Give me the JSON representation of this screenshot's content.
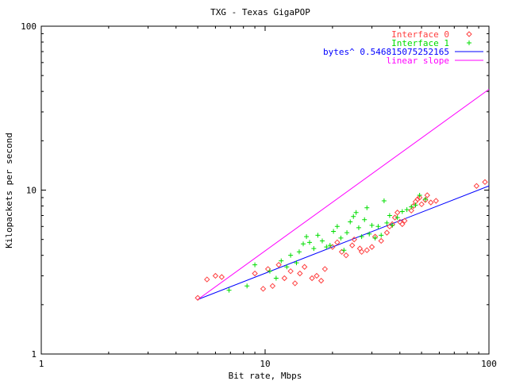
{
  "chart_data": {
    "type": "scatter",
    "title": "TXG - Texas GigaPOP",
    "xlabel": "Bit rate, Mbps",
    "ylabel": "Kilopackets per second",
    "xscale": "log",
    "yscale": "log",
    "xlim": [
      1,
      100
    ],
    "ylim": [
      1,
      100
    ],
    "xticks": [
      {
        "value": 1,
        "label": "1"
      },
      {
        "value": 10,
        "label": "10"
      },
      {
        "value": 100,
        "label": "100"
      }
    ],
    "yticks": [
      {
        "value": 1,
        "label": "1"
      },
      {
        "value": 10,
        "label": "10"
      },
      {
        "value": 100,
        "label": "100"
      }
    ],
    "grid": false,
    "legend_position": "top-right",
    "series": [
      {
        "name": "Interface 0",
        "kind": "points",
        "marker": "diamond",
        "color": "#ff4040",
        "points": [
          [
            5.5,
            2.85
          ],
          [
            6.0,
            3.0
          ],
          [
            6.4,
            2.95
          ],
          [
            5.0,
            2.2
          ],
          [
            9.0,
            3.1
          ],
          [
            9.8,
            2.5
          ],
          [
            10.3,
            3.3
          ],
          [
            10.8,
            2.6
          ],
          [
            11.5,
            3.5
          ],
          [
            12.2,
            2.9
          ],
          [
            13.0,
            3.2
          ],
          [
            13.6,
            2.7
          ],
          [
            14.3,
            3.1
          ],
          [
            15.0,
            3.4
          ],
          [
            16.2,
            2.9
          ],
          [
            17.0,
            3.0
          ],
          [
            17.8,
            2.8
          ],
          [
            18.5,
            3.3
          ],
          [
            20.0,
            4.5
          ],
          [
            21.0,
            4.8
          ],
          [
            22.0,
            4.2
          ],
          [
            23.0,
            4.0
          ],
          [
            24.5,
            4.6
          ],
          [
            25.0,
            5.0
          ],
          [
            26.5,
            4.4
          ],
          [
            27.0,
            4.2
          ],
          [
            28.5,
            4.3
          ],
          [
            30.0,
            4.5
          ],
          [
            31.0,
            5.2
          ],
          [
            33.0,
            4.9
          ],
          [
            35.0,
            5.5
          ],
          [
            36.0,
            6.0
          ],
          [
            37.0,
            6.2
          ],
          [
            38.0,
            6.8
          ],
          [
            39.0,
            7.3
          ],
          [
            40.0,
            6.4
          ],
          [
            41.0,
            6.2
          ],
          [
            42.0,
            6.5
          ],
          [
            45.0,
            7.5
          ],
          [
            46.0,
            8.0
          ],
          [
            47.0,
            8.5
          ],
          [
            48.0,
            8.8
          ],
          [
            49.0,
            9.0
          ],
          [
            50.0,
            8.2
          ],
          [
            52.0,
            8.7
          ],
          [
            53.0,
            9.3
          ],
          [
            55.0,
            8.4
          ],
          [
            58.0,
            8.6
          ],
          [
            88.0,
            10.6
          ],
          [
            96.0,
            11.2
          ]
        ]
      },
      {
        "name": "Interface 1",
        "kind": "points",
        "marker": "plus",
        "color": "#00dd00",
        "points": [
          [
            6.9,
            2.45
          ],
          [
            8.3,
            2.6
          ],
          [
            9.0,
            3.5
          ],
          [
            10.5,
            3.2
          ],
          [
            11.2,
            2.9
          ],
          [
            11.8,
            3.7
          ],
          [
            12.5,
            3.4
          ],
          [
            13.0,
            4.0
          ],
          [
            13.8,
            3.6
          ],
          [
            14.2,
            4.2
          ],
          [
            14.8,
            4.7
          ],
          [
            15.3,
            5.2
          ],
          [
            15.8,
            4.8
          ],
          [
            16.5,
            4.4
          ],
          [
            17.2,
            5.3
          ],
          [
            18.0,
            4.9
          ],
          [
            18.8,
            4.5
          ],
          [
            19.5,
            4.6
          ],
          [
            20.2,
            5.6
          ],
          [
            21.0,
            6.0
          ],
          [
            21.8,
            5.1
          ],
          [
            22.5,
            4.3
          ],
          [
            23.2,
            5.5
          ],
          [
            24.0,
            6.4
          ],
          [
            24.8,
            6.9
          ],
          [
            25.5,
            7.3
          ],
          [
            26.2,
            5.9
          ],
          [
            27.0,
            5.2
          ],
          [
            27.8,
            6.6
          ],
          [
            28.5,
            7.8
          ],
          [
            29.2,
            5.4
          ],
          [
            30.0,
            6.1
          ],
          [
            31.0,
            5.1
          ],
          [
            32.0,
            6.0
          ],
          [
            33.0,
            5.3
          ],
          [
            34.0,
            8.6
          ],
          [
            35.0,
            6.3
          ],
          [
            36.0,
            7.0
          ],
          [
            37.0,
            6.1
          ],
          [
            39.0,
            6.8
          ],
          [
            41.0,
            7.4
          ],
          [
            43.0,
            7.6
          ],
          [
            45.0,
            7.9
          ],
          [
            47.0,
            8.1
          ],
          [
            49.0,
            9.3
          ],
          [
            52.0,
            8.8
          ]
        ]
      },
      {
        "name": "bytes^ 0.546815075252165",
        "kind": "line",
        "color": "#0000ff",
        "points": [
          [
            5,
            2.15
          ],
          [
            100,
            10.6
          ]
        ]
      },
      {
        "name": "linear slope",
        "kind": "line",
        "color": "#ff00ff",
        "points": [
          [
            5,
            2.15
          ],
          [
            100,
            41.2
          ]
        ]
      }
    ]
  }
}
